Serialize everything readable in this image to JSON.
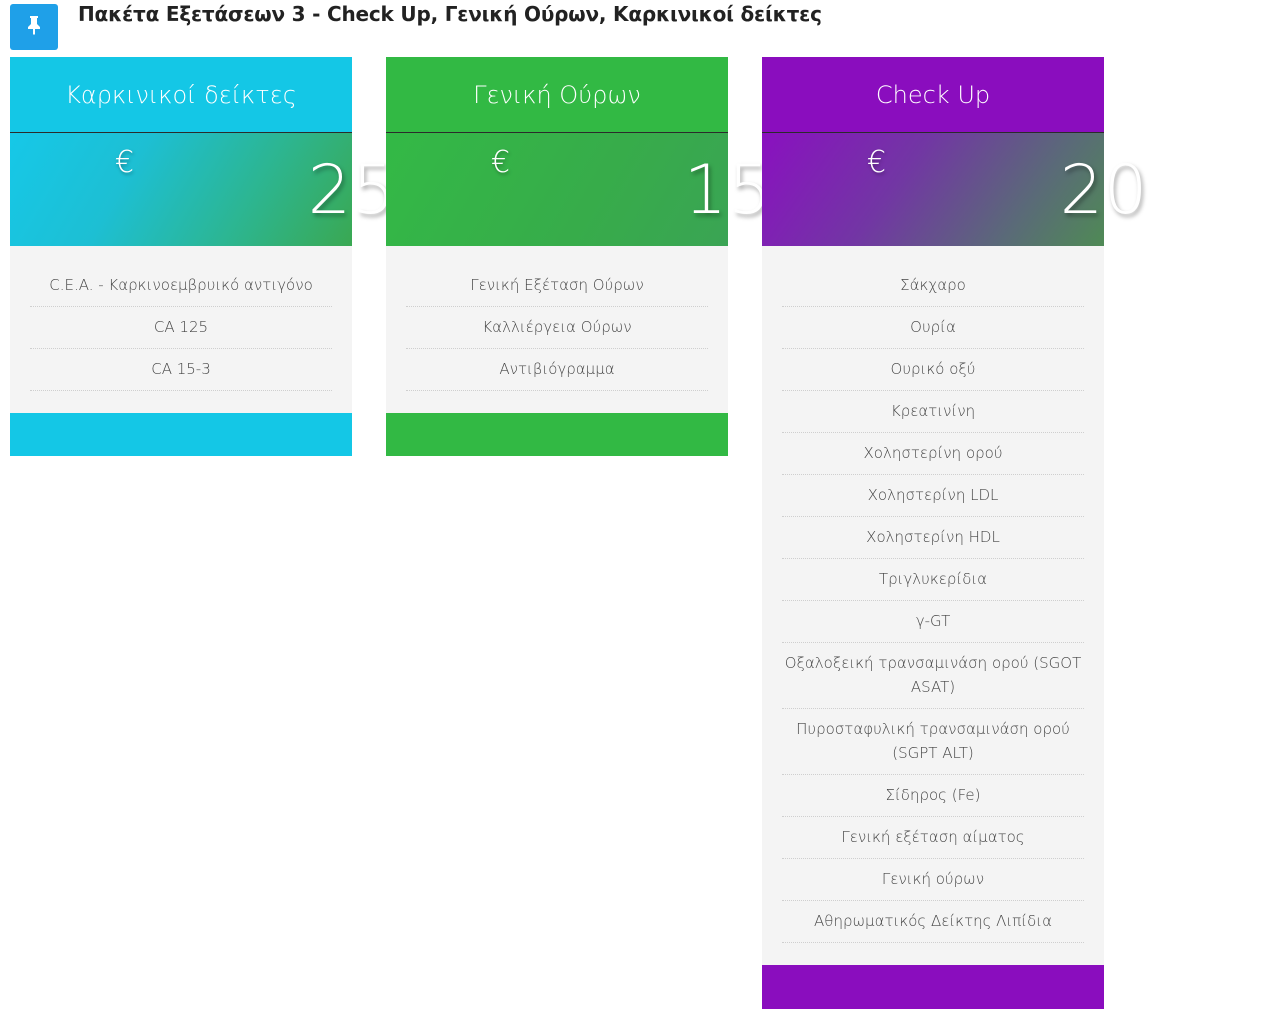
{
  "header": {
    "title": "Πακέτα Εξετάσεων 3 - Check Up, Γενική Ούρων, Καρκινικοί δείκτες",
    "pin_icon": "pin-icon",
    "pin_color": "#1fa0e8"
  },
  "cards": [
    {
      "title": "Καρκινικοί δείκτες",
      "currency": "€",
      "price": "25",
      "color": "#14c7e6",
      "items": [
        "C.E.A. - Καρκινοεμβρυικό αντιγόνο",
        "CA 125",
        "CA 15-3"
      ]
    },
    {
      "title": "Γενική Ούρων",
      "currency": "€",
      "price": "15",
      "color": "#32b944",
      "items": [
        "Γενική Εξέταση Ούρων",
        "Καλλιέργεια Ούρων",
        "Αντιβιόγραμμα"
      ]
    },
    {
      "title": "Check Up",
      "currency": "€",
      "price": "20",
      "color": "#8a0dbe",
      "items": [
        "Σάκχαρο",
        "Ουρία",
        "Ουρικό οξύ",
        "Κρεατινίνη",
        "Χοληστερίνη ορού",
        "Χοληστερίνη LDL",
        "Χοληστερίνη HDL",
        "Τριγλυκερίδια",
        "γ-GT",
        "Οξαλοξεική τρανσαμινάση ορού (SGOT ASAT)",
        "Πυροσταφυλική τρανσαμινάση ορού (SGPT ALT)",
        "Σίδηρος (Fe)",
        "Γενική εξέταση αίματος",
        "Γενική ούρων",
        "Αθηρωματικός Δείκτης Λιπίδια"
      ]
    }
  ]
}
